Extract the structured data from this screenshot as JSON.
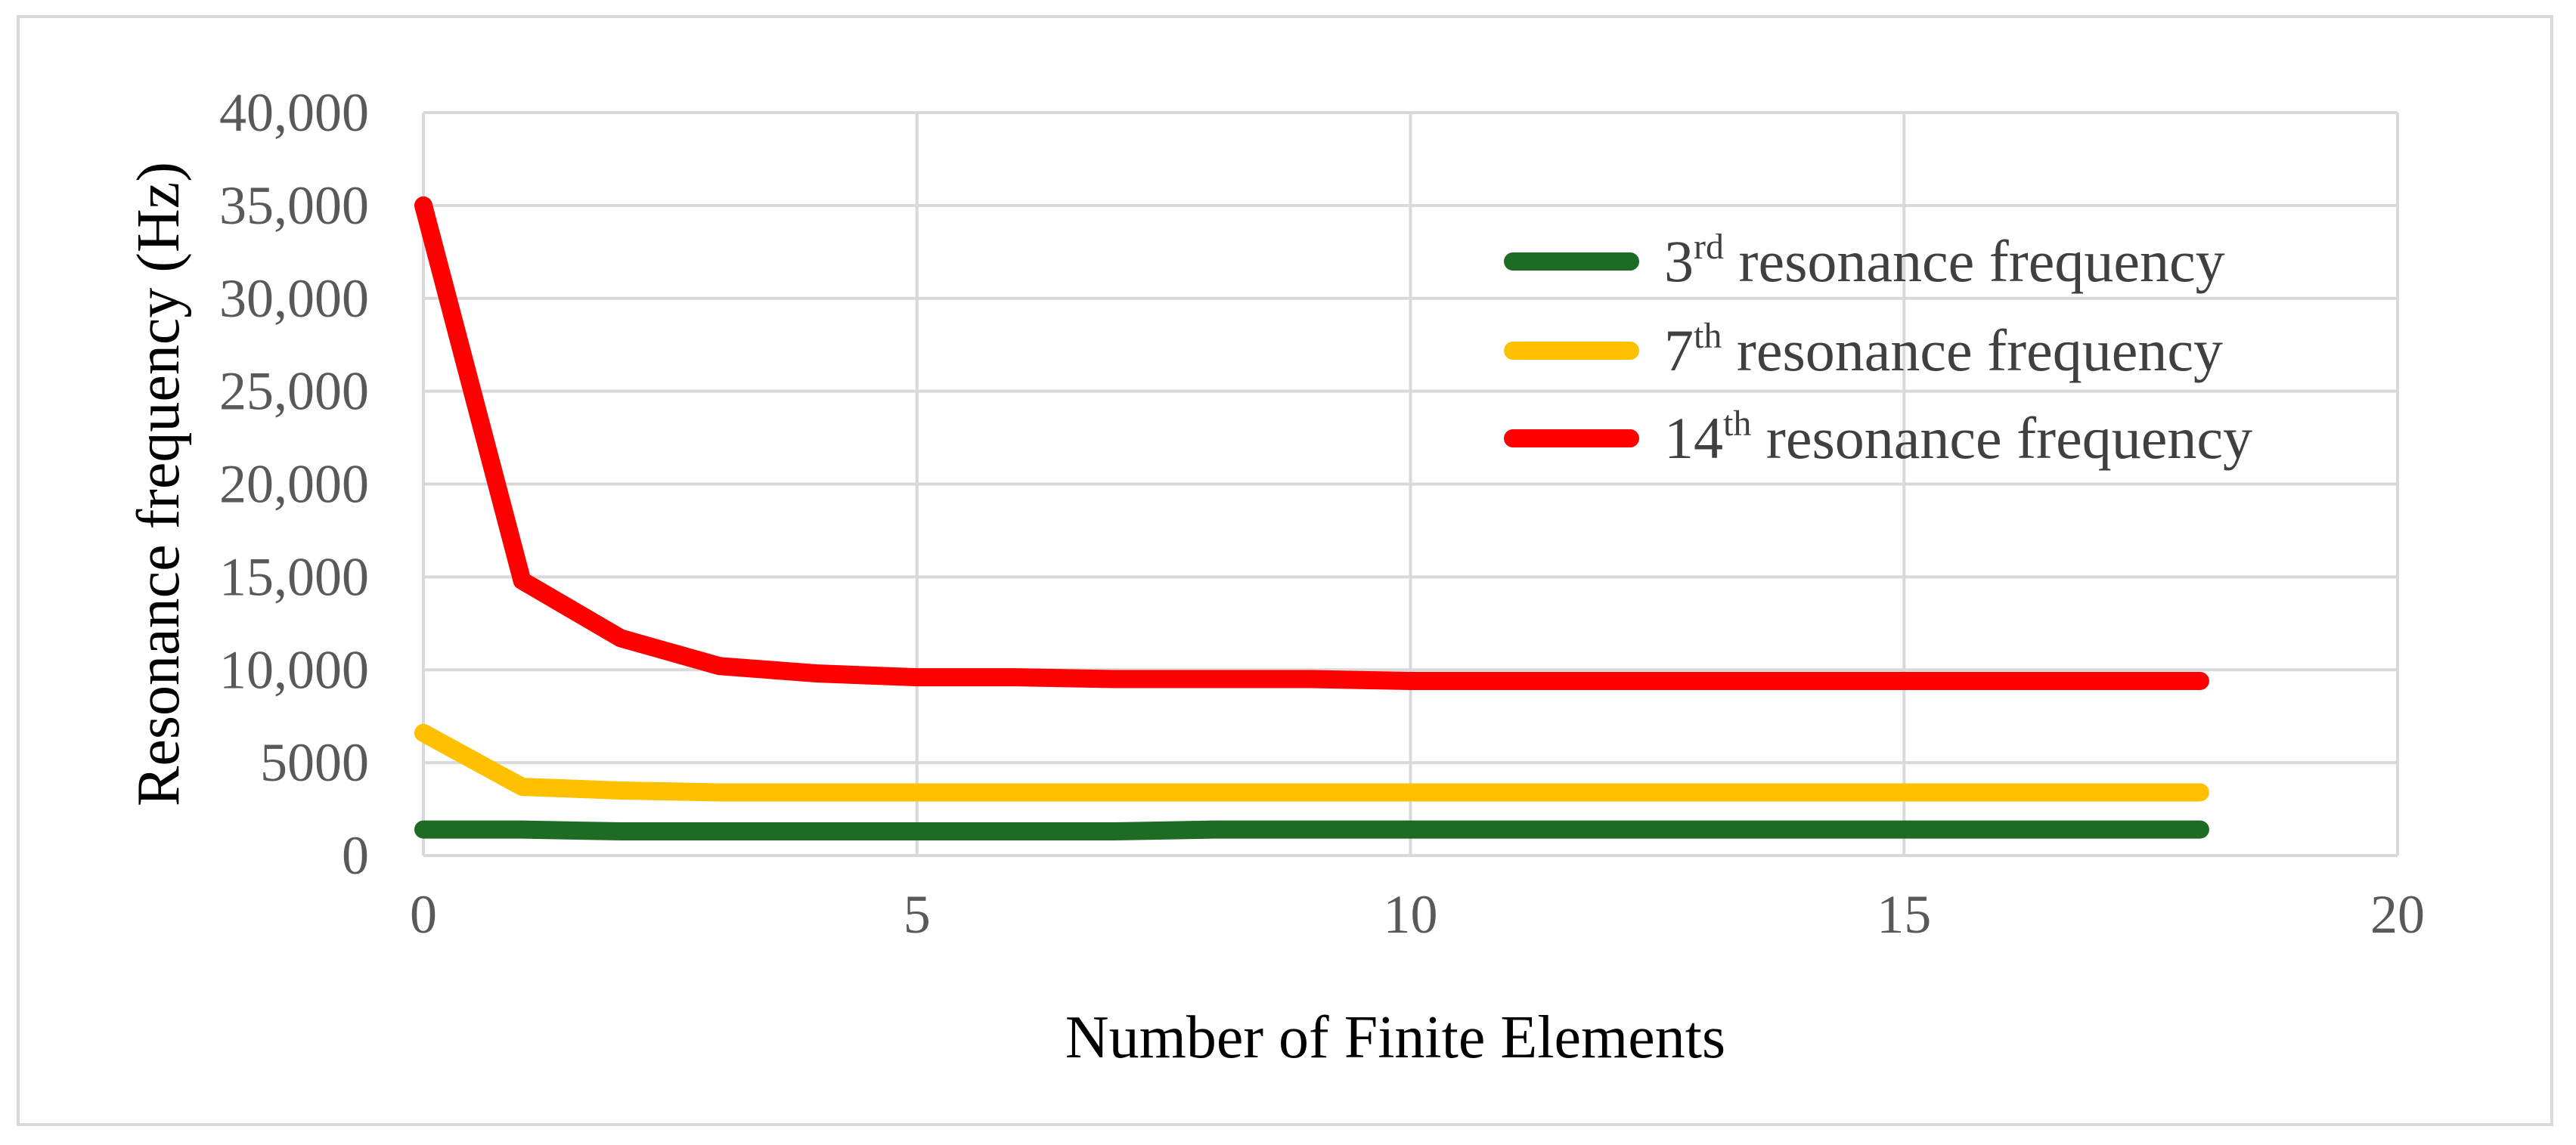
{
  "chart_data": {
    "type": "line",
    "title": "",
    "xlabel": "Number of Finite Elements",
    "ylabel": "Resonance frequency (Hz)",
    "xlim": [
      0,
      20
    ],
    "ylim": [
      0,
      40000
    ],
    "xticks": [
      0,
      5,
      10,
      15,
      20
    ],
    "xtick_labels": [
      "0",
      "5",
      "10",
      "15",
      "20"
    ],
    "yticks": [
      0,
      5000,
      10000,
      15000,
      20000,
      25000,
      30000,
      35000,
      40000
    ],
    "ytick_labels": [
      "0",
      "5000",
      "10,000",
      "15,000",
      "20,000",
      "25,000",
      "30,000",
      "35,000",
      "40,000"
    ],
    "grid": true,
    "legend_position": "top-right",
    "x": [
      0,
      1,
      2,
      3,
      4,
      5,
      6,
      7,
      8,
      9,
      10,
      11,
      12,
      13,
      14,
      15,
      16,
      17,
      18
    ],
    "series": [
      {
        "name": "3rd resonance frequency",
        "name_number": "3",
        "name_suffix": "rd",
        "name_rest": "resonance frequency",
        "color": "#1e6b23",
        "values": [
          1400,
          1400,
          1300,
          1300,
          1300,
          1300,
          1300,
          1300,
          1400,
          1400,
          1400,
          1400,
          1400,
          1400,
          1400,
          1400,
          1400,
          1400,
          1400
        ]
      },
      {
        "name": "7th resonance frequency",
        "name_number": "7",
        "name_suffix": "th",
        "name_rest": "resonance frequency",
        "color": "#ffc000",
        "values": [
          6600,
          3700,
          3500,
          3400,
          3400,
          3400,
          3400,
          3400,
          3400,
          3400,
          3400,
          3400,
          3400,
          3400,
          3400,
          3400,
          3400,
          3400,
          3400
        ]
      },
      {
        "name": "14th resonance frequency",
        "name_number": "14",
        "name_suffix": "th",
        "name_rest": "resonance frequency",
        "color": "#ff0000",
        "values": [
          35000,
          14800,
          11700,
          10200,
          9800,
          9600,
          9600,
          9500,
          9500,
          9500,
          9400,
          9400,
          9400,
          9400,
          9400,
          9400,
          9400,
          9400,
          9400
        ]
      }
    ]
  }
}
